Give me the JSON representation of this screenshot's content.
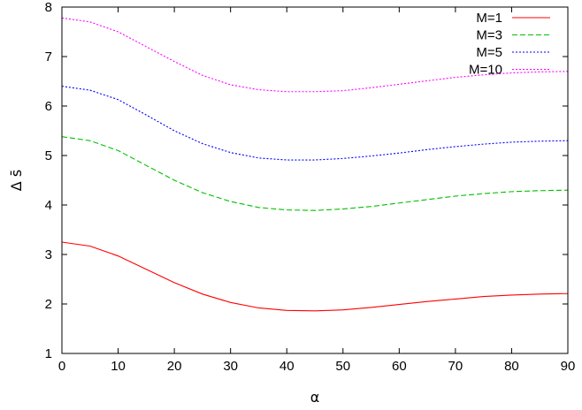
{
  "chart_data": {
    "type": "line",
    "title": "",
    "xlabel": "α",
    "ylabel": "Δ s̄",
    "xlim": [
      0,
      90
    ],
    "ylim": [
      1,
      8
    ],
    "xticks": [
      0,
      10,
      20,
      30,
      40,
      50,
      60,
      70,
      80,
      90
    ],
    "yticks": [
      1,
      2,
      3,
      4,
      5,
      6,
      7,
      8
    ],
    "grid": false,
    "legend_position": "top-right",
    "x": [
      0,
      5,
      10,
      15,
      20,
      25,
      30,
      35,
      40,
      45,
      50,
      55,
      60,
      65,
      70,
      75,
      80,
      85,
      90
    ],
    "series": [
      {
        "name": "M=1",
        "color": "#ff0000",
        "dash": "solid",
        "values": [
          3.25,
          3.17,
          2.97,
          2.7,
          2.43,
          2.2,
          2.03,
          1.92,
          1.87,
          1.86,
          1.88,
          1.93,
          1.99,
          2.05,
          2.1,
          2.15,
          2.18,
          2.2,
          2.21
        ]
      },
      {
        "name": "M=3",
        "color": "#00c000",
        "dash": "dashed",
        "values": [
          5.38,
          5.3,
          5.1,
          4.8,
          4.5,
          4.25,
          4.07,
          3.95,
          3.9,
          3.89,
          3.92,
          3.97,
          4.04,
          4.11,
          4.18,
          4.23,
          4.27,
          4.29,
          4.3
        ]
      },
      {
        "name": "M=5",
        "color": "#0000ff",
        "dash": "dotted",
        "values": [
          6.4,
          6.32,
          6.13,
          5.82,
          5.5,
          5.24,
          5.06,
          4.95,
          4.91,
          4.91,
          4.94,
          4.99,
          5.05,
          5.12,
          5.18,
          5.23,
          5.27,
          5.29,
          5.3
        ]
      },
      {
        "name": "M=10",
        "color": "#ff00ff",
        "dash": "dotted",
        "values": [
          7.78,
          7.7,
          7.5,
          7.2,
          6.9,
          6.62,
          6.43,
          6.33,
          6.29,
          6.29,
          6.31,
          6.37,
          6.44,
          6.51,
          6.58,
          6.63,
          6.67,
          6.69,
          6.7
        ]
      }
    ]
  }
}
